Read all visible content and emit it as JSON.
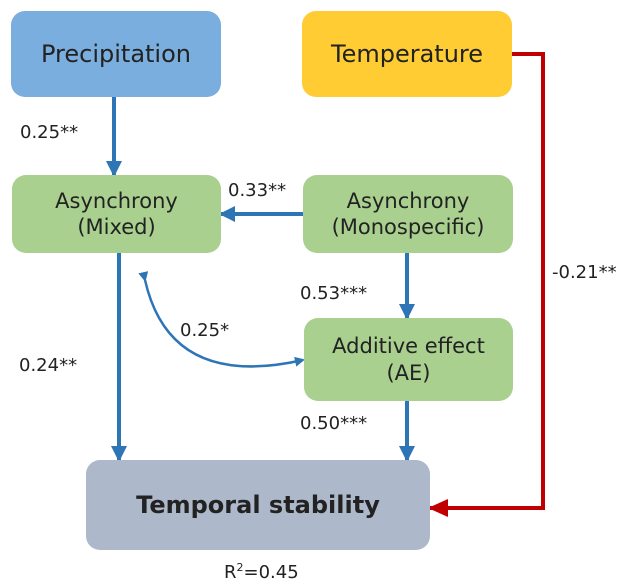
{
  "nodes": {
    "precipitation": {
      "label": "Precipitation"
    },
    "temperature": {
      "label": "Temperature"
    },
    "asynchrony_mixed": {
      "line1": "Asynchrony",
      "line2": "(Mixed)"
    },
    "asynchrony_mono": {
      "line1": "Asynchrony",
      "line2": "(Monospecific)"
    },
    "additive_effect": {
      "line1": "Additive effect",
      "line2": "(AE)"
    },
    "temporal_stability": {
      "label": "Temporal stability"
    }
  },
  "paths": {
    "precip_to_mixed": "0.25**",
    "mono_to_mixed": "0.33**",
    "mono_to_ae": "0.53***",
    "mixed_ae_correlation": "0.25*",
    "mixed_to_stability": "0.24**",
    "ae_to_stability": "0.50***",
    "temp_to_stability": "-0.21**"
  },
  "r_squared": {
    "prefix": "R",
    "sup": "2",
    "value": "=0.45"
  },
  "colors": {
    "precipitation": "#7aaede",
    "temperature": "#ffcc33",
    "green_box": "#a9d08e",
    "stability_box": "#adb9ca",
    "blue_arrow": "#2e75b6",
    "red_arrow": "#c00000"
  }
}
